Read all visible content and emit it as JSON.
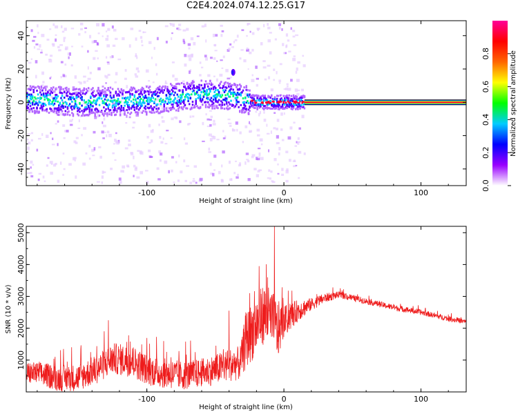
{
  "title": "C2E4.2024.074.12.25.G17",
  "colors": {
    "spectrogram_palette": [
      "#ffffff",
      "#e6ccff",
      "#b366ff",
      "#6600ff",
      "#1a1aff",
      "#00ccff",
      "#00ff66",
      "#ffff00",
      "#ff6600",
      "#ff0033"
    ],
    "snr_line": "#ee1c1c",
    "colorbar_stops": [
      "#ffffff",
      "#9900ff",
      "#0000ff",
      "#00ccff",
      "#00ff00",
      "#ffff00",
      "#ff6600",
      "#ff0000",
      "#ff0099"
    ]
  },
  "chart_data": [
    {
      "type": "heatmap",
      "xlabel": "Height of straight line (km)",
      "ylabel": "Frequency (Hz)",
      "xlim": [
        -188,
        133
      ],
      "ylim": [
        -50,
        49
      ],
      "xticks": [
        -100,
        0,
        100
      ],
      "yticks": [
        -40,
        -20,
        0,
        20,
        40
      ],
      "colorbar": {
        "label": "Normalized spectral amplitude",
        "range": [
          0,
          1
        ],
        "ticks": [
          0.0,
          0.2,
          0.4,
          0.6,
          0.8
        ]
      },
      "features": {
        "main_band_start_km": -188,
        "main_band_end_km": 15,
        "main_band_center_hz": [
          [
            -188,
            2
          ],
          [
            -150,
            0
          ],
          [
            -100,
            1
          ],
          [
            -60,
            5
          ],
          [
            -40,
            4
          ],
          [
            -20,
            0
          ],
          [
            0,
            0
          ],
          [
            15,
            0
          ]
        ],
        "main_band_halfwidth_hz": 6,
        "constant_line_start_km": 15,
        "constant_line_end_km": 133,
        "constant_line_hz": 0,
        "isolated_blob": {
          "x_km": -37,
          "y_hz": 18
        }
      }
    },
    {
      "type": "line",
      "xlabel": "Height of straight line (km)",
      "ylabel": "SNR (10 * v/v)",
      "xlim": [
        -188,
        133
      ],
      "ylim": [
        0,
        5200
      ],
      "xticks": [
        -100,
        0,
        100
      ],
      "yticks": [
        1000,
        2000,
        3000,
        4000,
        5000
      ],
      "envelope": {
        "x": [
          -188,
          -175,
          -165,
          -150,
          -135,
          -125,
          -110,
          -100,
          -90,
          -75,
          -65,
          -50,
          -40,
          -32,
          -28,
          -20,
          -15,
          -10,
          -5,
          0,
          10,
          20,
          30,
          40,
          50,
          60,
          80,
          100,
          120,
          133
        ],
        "y": [
          600,
          550,
          420,
          450,
          750,
          1050,
          950,
          700,
          600,
          520,
          560,
          700,
          850,
          900,
          1600,
          2100,
          2450,
          2300,
          1900,
          2200,
          2550,
          2750,
          2950,
          3050,
          2950,
          2850,
          2650,
          2500,
          2300,
          2200
        ]
      },
      "noise_amplitude": {
        "x": [
          -188,
          -120,
          -60,
          -30,
          -29,
          -5,
          0,
          20,
          40,
          133
        ],
        "y": [
          350,
          500,
          450,
          550,
          900,
          1000,
          500,
          200,
          100,
          80
        ]
      },
      "peaks": [
        {
          "x": -7,
          "y": 5200
        },
        {
          "x": -18,
          "y": 3950
        },
        {
          "x": -12,
          "y": 3600
        },
        {
          "x": -25,
          "y": 3100
        },
        {
          "x": -128,
          "y": 2250
        },
        {
          "x": -40,
          "y": 2550
        }
      ]
    }
  ]
}
